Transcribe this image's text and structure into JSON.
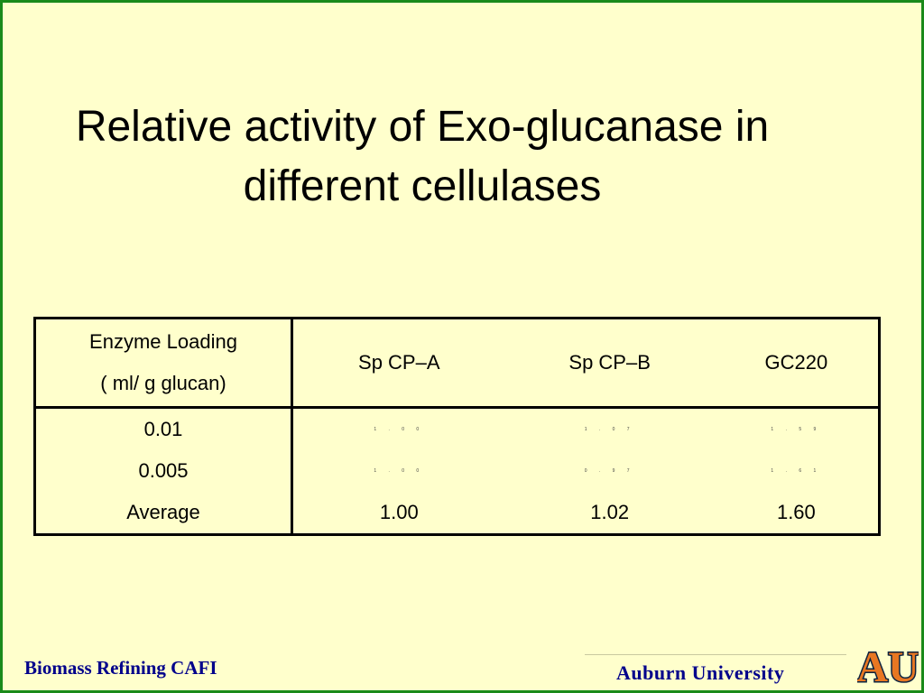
{
  "slide": {
    "title_line1": "Relative activity of Exo-glucanase in",
    "title_line2": "different cellulases"
  },
  "table": {
    "header_line1": "Enzyme Loading",
    "header_line2": "( ml/ g glucan)",
    "columns": [
      "Sp CP–A",
      "Sp CP–B",
      "GC220"
    ],
    "rows": [
      {
        "label": "0.01",
        "values": [
          "1 . 0 0",
          "1 . 0 7",
          "1 . 5 9"
        ]
      },
      {
        "label": "0.005",
        "values": [
          "1 . 0 0",
          "0 . 9 7",
          "1 . 6 1"
        ]
      },
      {
        "label": "Average",
        "values": [
          "1.00",
          "1.02",
          "1.60"
        ]
      }
    ]
  },
  "footer": {
    "left": "Biomass Refining CAFI",
    "right": "Auburn University",
    "logo_text": "AU"
  },
  "colors": {
    "background": "#ffffcc",
    "border": "#1a8a1a",
    "footer_text": "#00008b",
    "logo_orange": "#e87722",
    "logo_navy": "#0c2340"
  }
}
